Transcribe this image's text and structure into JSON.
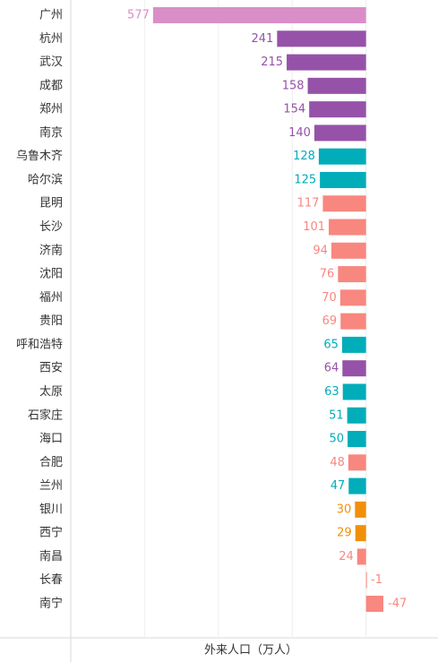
{
  "chart_data": {
    "type": "bar",
    "orientation": "horizontal",
    "x_label": "外来人口（万人）",
    "categories": [
      "广州",
      "杭州",
      "武汉",
      "成都",
      "郑州",
      "南京",
      "乌鲁木齐",
      "哈尔滨",
      "昆明",
      "长沙",
      "济南",
      "沈阳",
      "福州",
      "贵阳",
      "呼和浩特",
      "西安",
      "太原",
      "石家庄",
      "海口",
      "合肥",
      "兰州",
      "银川",
      "西宁",
      "南昌",
      "长春",
      "南宁"
    ],
    "values": [
      577,
      241,
      215,
      158,
      154,
      140,
      128,
      125,
      117,
      101,
      94,
      76,
      70,
      69,
      65,
      64,
      63,
      51,
      50,
      48,
      47,
      30,
      29,
      24,
      -1,
      -47
    ],
    "colors": [
      "#da8ec8",
      "#9652a8",
      "#9652a8",
      "#9652a8",
      "#9652a8",
      "#9652a8",
      "#00adb9",
      "#00adb9",
      "#f8877f",
      "#f8877f",
      "#f8877f",
      "#f8877f",
      "#f8877f",
      "#f8877f",
      "#00adb9",
      "#9652a8",
      "#00adb9",
      "#00adb9",
      "#00adb9",
      "#f8877f",
      "#00adb9",
      "#f0900a",
      "#f0900a",
      "#f8877f",
      "#f8877f",
      "#f8877f"
    ],
    "xlim": [
      800,
      -195
    ],
    "xticks": [
      0,
      200,
      400,
      600
    ],
    "grid": true
  }
}
